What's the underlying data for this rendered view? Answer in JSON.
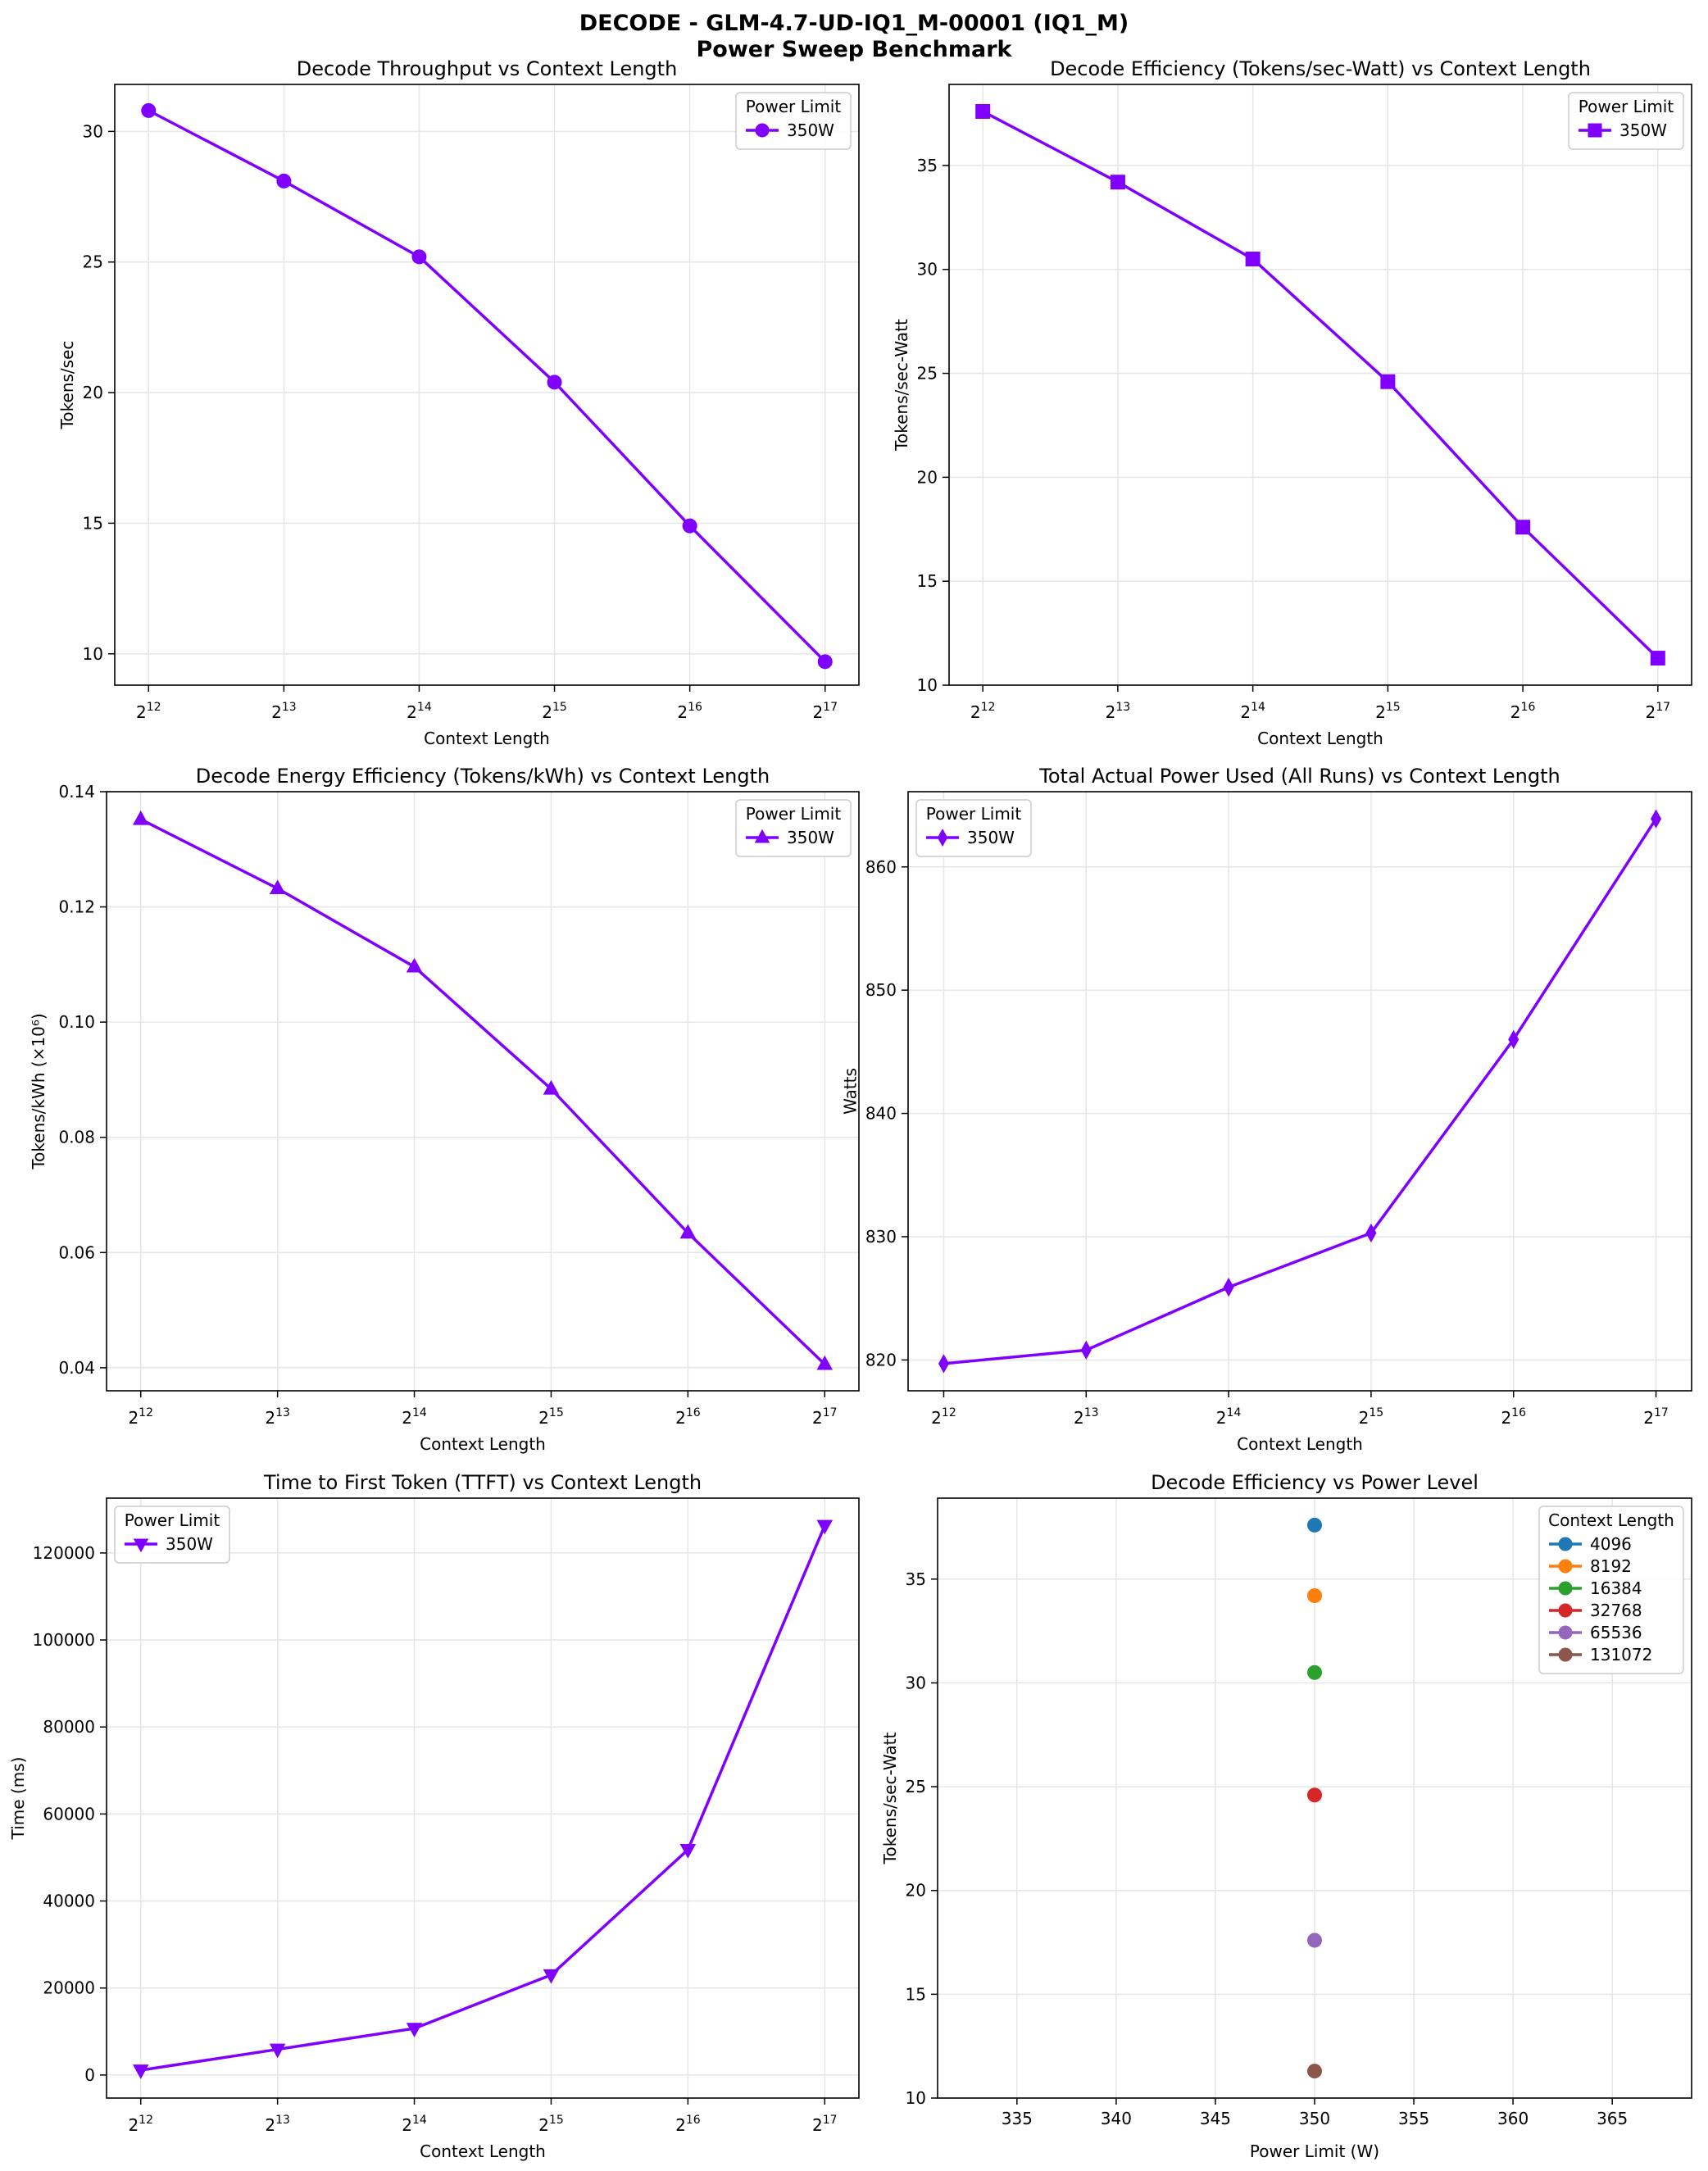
{
  "figure": {
    "title_line1": "DECODE - GLM-4.7-UD-IQ1_M-00001 (IQ1_M)",
    "title_line2": "Power Sweep Benchmark"
  },
  "colors": {
    "series_350W": "#7f00ff",
    "ctx_4096": "#1f77b4",
    "ctx_8192": "#ff7f0e",
    "ctx_16384": "#2ca02c",
    "ctx_32768": "#d62728",
    "ctx_65536": "#9467bd",
    "ctx_131072": "#8c564b",
    "grid": "#e6e6e6"
  },
  "chart_data": [
    {
      "id": "throughput",
      "type": "line",
      "title": "Decode Throughput vs Context Length",
      "xlabel": "Context Length",
      "ylabel": "Tokens/sec",
      "x": [
        4096,
        8192,
        16384,
        32768,
        65536,
        131072
      ],
      "x_scale": "log2",
      "xticks": [
        "2^12",
        "2^13",
        "2^14",
        "2^15",
        "2^16",
        "2^17"
      ],
      "ylim": [
        8.8,
        31.8
      ],
      "yticks": [
        10,
        15,
        20,
        25,
        30
      ],
      "grid": true,
      "legend_title": "Power Limit",
      "legend_loc": "upper right",
      "series": [
        {
          "name": "350W",
          "marker": "circle",
          "values": [
            30.8,
            28.1,
            25.2,
            20.4,
            14.9,
            9.7
          ]
        }
      ]
    },
    {
      "id": "efficiency",
      "type": "line",
      "title": "Decode Efficiency (Tokens/sec-Watt) vs Context Length",
      "xlabel": "Context Length",
      "ylabel": "Tokens/sec-Watt",
      "x": [
        4096,
        8192,
        16384,
        32768,
        65536,
        131072
      ],
      "x_scale": "log2",
      "xticks": [
        "2^12",
        "2^13",
        "2^14",
        "2^15",
        "2^16",
        "2^17"
      ],
      "ylim": [
        10,
        38.9
      ],
      "yticks": [
        10,
        15,
        20,
        25,
        30,
        35
      ],
      "grid": true,
      "legend_title": "Power Limit",
      "legend_loc": "upper right",
      "series": [
        {
          "name": "350W",
          "marker": "square",
          "values": [
            37.6,
            34.2,
            30.5,
            24.6,
            17.6,
            11.3
          ]
        }
      ]
    },
    {
      "id": "energy",
      "type": "line",
      "title": "Decode Energy Efficiency (Tokens/kWh) vs Context Length",
      "xlabel": "Context Length",
      "ylabel": "Tokens/kWh (×10⁶)",
      "x": [
        4096,
        8192,
        16384,
        32768,
        65536,
        131072
      ],
      "x_scale": "log2",
      "xticks": [
        "2^12",
        "2^13",
        "2^14",
        "2^15",
        "2^16",
        "2^17"
      ],
      "ylim": [
        0.036,
        0.14
      ],
      "yticks": [
        "0.04",
        "0.06",
        "0.08",
        "0.10",
        "0.12",
        "0.14"
      ],
      "grid": true,
      "legend_title": "Power Limit",
      "legend_loc": "upper right",
      "series": [
        {
          "name": "350W",
          "marker": "triangle-up",
          "values": [
            0.1352,
            0.1232,
            0.1096,
            0.0884,
            0.0634,
            0.0406
          ]
        }
      ]
    },
    {
      "id": "power",
      "type": "line",
      "title": "Total Actual Power Used (All Runs) vs Context Length",
      "xlabel": "Context Length",
      "ylabel": "Watts",
      "x": [
        4096,
        8192,
        16384,
        32768,
        65536,
        131072
      ],
      "x_scale": "log2",
      "xticks": [
        "2^12",
        "2^13",
        "2^14",
        "2^15",
        "2^16",
        "2^17"
      ],
      "ylim": [
        817.5,
        866.1
      ],
      "yticks": [
        820,
        830,
        840,
        850,
        860
      ],
      "grid": true,
      "legend_title": "Power Limit",
      "legend_loc": "upper left",
      "series": [
        {
          "name": "350W",
          "marker": "thin-diamond",
          "values": [
            819.7,
            820.8,
            825.9,
            830.3,
            846.0,
            863.9
          ]
        }
      ]
    },
    {
      "id": "ttft",
      "type": "line",
      "title": "Time to First Token (TTFT) vs Context Length",
      "xlabel": "Context Length",
      "ylabel": "Time (ms)",
      "x": [
        4096,
        8192,
        16384,
        32768,
        65536,
        131072
      ],
      "x_scale": "log2",
      "xticks": [
        "2^12",
        "2^13",
        "2^14",
        "2^15",
        "2^16",
        "2^17"
      ],
      "ylim": [
        -5300,
        132600
      ],
      "yticks": [
        0,
        20000,
        40000,
        60000,
        80000,
        100000,
        120000
      ],
      "grid": true,
      "legend_title": "Power Limit",
      "legend_loc": "upper left",
      "series": [
        {
          "name": "350W",
          "marker": "triangle-down",
          "values": [
            1100,
            5900,
            10700,
            23000,
            51800,
            126300
          ]
        }
      ]
    },
    {
      "id": "eff_vs_power",
      "type": "scatter",
      "title": "Decode Efficiency vs Power Level",
      "xlabel": "Power Limit (W)",
      "ylabel": "Tokens/sec-Watt",
      "xlim": [
        331,
        369
      ],
      "xticks": [
        335,
        340,
        345,
        350,
        355,
        360,
        365
      ],
      "ylim": [
        10,
        38.9
      ],
      "yticks": [
        10,
        15,
        20,
        25,
        30,
        35
      ],
      "grid": true,
      "legend_title": "Context Length",
      "legend_loc": "upper right",
      "series": [
        {
          "name": "4096",
          "color_key": "ctx_4096",
          "points": [
            [
              350,
              37.6
            ]
          ]
        },
        {
          "name": "8192",
          "color_key": "ctx_8192",
          "points": [
            [
              350,
              34.2
            ]
          ]
        },
        {
          "name": "16384",
          "color_key": "ctx_16384",
          "points": [
            [
              350,
              30.5
            ]
          ]
        },
        {
          "name": "32768",
          "color_key": "ctx_32768",
          "points": [
            [
              350,
              24.6
            ]
          ]
        },
        {
          "name": "65536",
          "color_key": "ctx_65536",
          "points": [
            [
              350,
              17.6
            ]
          ]
        },
        {
          "name": "131072",
          "color_key": "ctx_131072",
          "points": [
            [
              350,
              11.3
            ]
          ]
        }
      ]
    }
  ]
}
